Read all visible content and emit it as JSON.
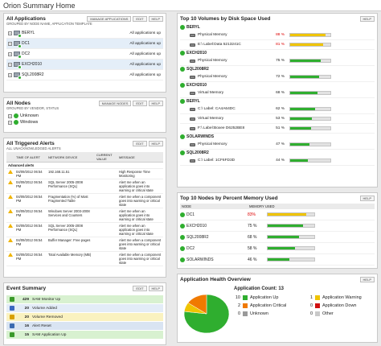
{
  "page": {
    "title": "Orion Summary Home"
  },
  "apps": {
    "title": "All Applications",
    "subtitle": "GROUPED BY NODE NAME, APPLICATION TEMPLATE",
    "buttons": [
      "MANAGE APPLICATIONS",
      "EDIT",
      "HELP"
    ],
    "rows": [
      {
        "name": "BERYL",
        "status": "All applications up"
      },
      {
        "name": "DC1",
        "status": "All applications up"
      },
      {
        "name": "DC2",
        "status": "All applications up"
      },
      {
        "name": "EXCH2010",
        "status": "All applications up"
      },
      {
        "name": "SQL2008R2",
        "status": "All applications up"
      }
    ]
  },
  "nodes": {
    "title": "All Nodes",
    "subtitle": "GROUPED BY VENDOR, STATUS",
    "buttons": [
      "MANAGE NODES",
      "EDIT",
      "HELP"
    ],
    "items": [
      "Unknown",
      "Windows"
    ]
  },
  "alerts": {
    "title": "All Triggered Alerts",
    "subtitle": "ALL UNACKNOWLEDGED ALERTS",
    "buttons": [
      "EDIT",
      "HELP"
    ],
    "columns": [
      "TIME OF ALERT",
      "NETWORK DEVICE",
      "CURRENT VALUE",
      "MESSAGE"
    ],
    "section": "Advanced alerts",
    "rows": [
      {
        "time": "04/09/2012 06:54 PM",
        "device": "192.168.11.51",
        "value": "",
        "message": "High Response Time Monitoring"
      },
      {
        "time": "04/09/2012 06:54 PM",
        "device": "SQL Server 2005-2008 Performance (SQL)",
        "value": "",
        "message": "Alert me when an application goes into warning or critical state"
      },
      {
        "time": "04/09/2012 06:54 PM",
        "device": "Fragmentation (%) of Most Fragmented Table",
        "value": "",
        "message": "Alert me when a component goes into warning or critical state"
      },
      {
        "time": "04/09/2012 06:54 PM",
        "device": "Windows Server 2003-2008 Services and Counters",
        "value": "",
        "message": "Alert me when an application goes into warning or critical state"
      },
      {
        "time": "04/09/2012 06:54 PM",
        "device": "SQL Server 2005-2008 Performance (SQL)",
        "value": "",
        "message": "Alert me when an application goes into warning or critical state"
      },
      {
        "time": "04/09/2012 06:54 PM",
        "device": "Buffer Manager: Free pages",
        "value": "",
        "message": "Alert me when a component goes into warning or critical state"
      },
      {
        "time": "04/09/2012 06:54 PM",
        "device": "Total Available Memory (MB)",
        "value": "",
        "message": "Alert me when a component goes into warning or critical state"
      }
    ]
  },
  "events": {
    "title": "Event Summary",
    "buttons": [
      "EDIT",
      "HELP"
    ],
    "rows": [
      {
        "count": "429",
        "label": "SAM Monitor Up",
        "bg": "#d8f1d0",
        "icon": "#3a9a2a"
      },
      {
        "count": "20",
        "label": "Volume Added",
        "bg": "#e3ecf7",
        "icon": "#3a67c0"
      },
      {
        "count": "20",
        "label": "Volume Removed",
        "bg": "#faf2c0",
        "icon": "#d8a000"
      },
      {
        "count": "16",
        "label": "Alert Reset",
        "bg": "#d9e4f2",
        "icon": "#3a6ab0"
      },
      {
        "count": "15",
        "label": "SAM Application Up",
        "bg": "#d8f1d0",
        "icon": "#3a9a2a"
      }
    ]
  },
  "volumes": {
    "title": "Top 10 Volumes by Disk Space Used",
    "buttons": [
      "HELP"
    ],
    "groups": [
      {
        "node": "BERYL",
        "rows": [
          {
            "name": "Physical Memory",
            "pct": "88 %",
            "value": 88,
            "color": "#f0c400",
            "red": true
          },
          {
            "name": "E:\\ Label:Data 5213241C",
            "pct": "81 %",
            "value": 81,
            "color": "#f0c400",
            "red": true
          }
        ]
      },
      {
        "node": "EXCH2010",
        "rows": [
          {
            "name": "Physical Memory",
            "pct": "75 %",
            "value": 75,
            "color": "#2fae2f",
            "red": false
          }
        ]
      },
      {
        "node": "SQL2008R2",
        "rows": [
          {
            "name": "Physical Memory",
            "pct": "72 %",
            "value": 72,
            "color": "#2fae2f",
            "red": false
          }
        ]
      },
      {
        "node": "EXCH2010",
        "rows": [
          {
            "name": "Virtual Memory",
            "pct": "68 %",
            "value": 68,
            "color": "#2fae2f",
            "red": false
          }
        ]
      },
      {
        "node": "BERYL",
        "rows": [
          {
            "name": "C:\\ Label: CA4A64DC",
            "pct": "62 %",
            "value": 62,
            "color": "#2fae2f",
            "red": false
          },
          {
            "name": "Virtual Memory",
            "pct": "53 %",
            "value": 53,
            "color": "#2fae2f",
            "red": false
          },
          {
            "name": "F:\\ Label:Boxee D6252BE8",
            "pct": "51 %",
            "value": 51,
            "color": "#2fae2f",
            "red": false
          }
        ]
      },
      {
        "node": "SOLARWINDS",
        "rows": [
          {
            "name": "Physical Memory",
            "pct": "47 %",
            "value": 47,
            "color": "#2fae2f",
            "red": false
          }
        ]
      },
      {
        "node": "SQL2008R2",
        "rows": [
          {
            "name": "C:\\ Label: 1CF6FD3D",
            "pct": "44 %",
            "value": 44,
            "color": "#2fae2f",
            "red": false
          }
        ]
      }
    ]
  },
  "memory": {
    "title": "Top 10 Nodes by Percent Memory Used",
    "buttons": [
      "HELP"
    ],
    "columns": [
      "NODE",
      "MEMORY USED"
    ],
    "rows": [
      {
        "name": "DC1",
        "pct": "83%",
        "value": 83,
        "color": "#f0c400",
        "red": true
      },
      {
        "name": "EXCH2010",
        "pct": "75 %",
        "value": 75,
        "color": "#2fae2f",
        "red": false
      },
      {
        "name": "SQL2008R2",
        "pct": "68 %",
        "value": 68,
        "color": "#2fae2f",
        "red": false
      },
      {
        "name": "DC2",
        "pct": "58 %",
        "value": 58,
        "color": "#2fae2f",
        "red": false
      },
      {
        "name": "SOLARWINDS",
        "pct": "46 %",
        "value": 46,
        "color": "#2fae2f",
        "red": false
      }
    ]
  },
  "health": {
    "title": "Application Health Overview",
    "buttons": [
      "HELP"
    ],
    "count_label": "Application Count: 13",
    "legend": [
      {
        "count": "10",
        "label": "Application Up",
        "color": "#2fae2f"
      },
      {
        "count": "1",
        "label": "Application Warning",
        "color": "#f0c400"
      },
      {
        "count": "2",
        "label": "Application Critical",
        "color": "#f07a00"
      },
      {
        "count": "0",
        "label": "Application Down",
        "color": "#d01010"
      },
      {
        "count": "0",
        "label": "Unknown",
        "color": "#9a9a9a"
      },
      {
        "count": "0",
        "label": "Other",
        "color": "#c9c9c9"
      }
    ]
  }
}
